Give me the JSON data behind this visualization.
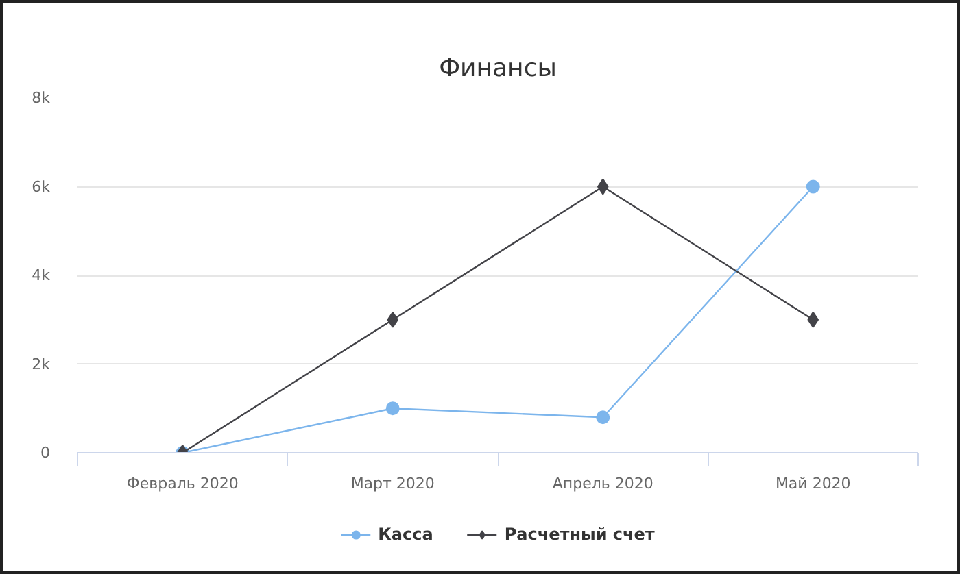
{
  "chart_data": {
    "type": "line",
    "title": "Финансы",
    "categories": [
      "Февраль 2020",
      "Март 2020",
      "Апрель 2020",
      "Май 2020"
    ],
    "series": [
      {
        "name": "Касса",
        "color": "#7cb5ec",
        "values": [
          0,
          1000,
          800,
          6000
        ],
        "marker": "circle"
      },
      {
        "name": "Расчетный счет",
        "color": "#434348",
        "values": [
          0,
          3000,
          6000,
          3000
        ],
        "marker": "diamond"
      }
    ],
    "ylim": [
      0,
      8000
    ],
    "yticks": [
      0,
      {
        "value": 2000,
        "label": "2k"
      },
      {
        "value": 4000,
        "label": "4k"
      },
      {
        "value": 6000,
        "label": "6k"
      },
      {
        "value": 8000,
        "label": "8k"
      }
    ],
    "grid": "y",
    "legend": "bottom"
  }
}
